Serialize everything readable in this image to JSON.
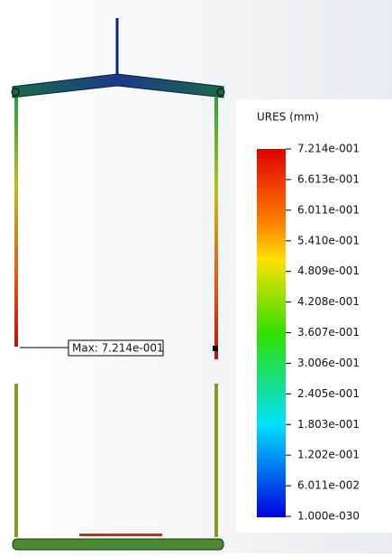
{
  "legend": {
    "title": "URES (mm)",
    "labels": [
      "7.214e-001",
      "6.613e-001",
      "6.011e-001",
      "5.410e-001",
      "4.809e-001",
      "4.208e-001",
      "3.607e-001",
      "3.006e-001",
      "2.405e-001",
      "1.803e-001",
      "1.202e-001",
      "6.011e-002",
      "1.000e-030"
    ]
  },
  "annotation": {
    "text": "Max: 7.214e-001"
  }
}
